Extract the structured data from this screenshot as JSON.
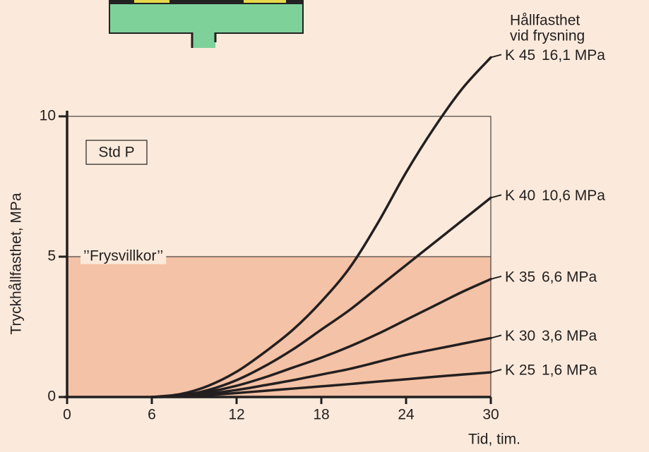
{
  "chart_data": {
    "type": "line",
    "x_label": "Tid, tim.",
    "y_label": "Tryckhållfasthet, MPa",
    "legend_title": [
      "Hållfasthet",
      "vid frysning"
    ],
    "box_label": "Std P",
    "band": {
      "from": 0,
      "to": 5,
      "label": "’’Frysvillkor’’",
      "color": "#f4c2a6"
    },
    "x": [
      6,
      8,
      10,
      12,
      14,
      16,
      18,
      20,
      22,
      24,
      26,
      28,
      30
    ],
    "series": [
      {
        "name": "K 45",
        "annotation": "16,1 MPa",
        "color": "#231f20",
        "values": [
          0,
          0.1,
          0.4,
          0.9,
          1.6,
          2.4,
          3.4,
          4.6,
          6.2,
          8.0,
          9.6,
          11.0,
          12.1
        ]
      },
      {
        "name": "K 40",
        "annotation": "10,6 MPa",
        "color": "#231f20",
        "values": [
          0,
          0.05,
          0.25,
          0.6,
          1.1,
          1.7,
          2.4,
          3.1,
          3.9,
          4.7,
          5.5,
          6.3,
          7.1
        ]
      },
      {
        "name": "K 35",
        "annotation": "6,6 MPa",
        "color": "#231f20",
        "values": [
          0,
          0.04,
          0.18,
          0.4,
          0.7,
          1.05,
          1.4,
          1.8,
          2.25,
          2.75,
          3.25,
          3.75,
          4.2
        ]
      },
      {
        "name": "K 30",
        "annotation": "3,6 MPa",
        "color": "#231f20",
        "values": [
          0,
          0.03,
          0.12,
          0.25,
          0.42,
          0.6,
          0.8,
          1.0,
          1.25,
          1.5,
          1.7,
          1.9,
          2.1
        ]
      },
      {
        "name": "K 25",
        "annotation": "1,6 MPa",
        "color": "#231f20",
        "values": [
          0,
          0.02,
          0.07,
          0.14,
          0.22,
          0.3,
          0.38,
          0.46,
          0.55,
          0.63,
          0.72,
          0.8,
          0.88
        ]
      }
    ],
    "xlim": [
      0,
      30
    ],
    "xticks": [
      0,
      6,
      12,
      18,
      24,
      30
    ],
    "ylim": [
      0,
      10
    ],
    "yticks": [
      0,
      5,
      10
    ],
    "grid": false
  }
}
